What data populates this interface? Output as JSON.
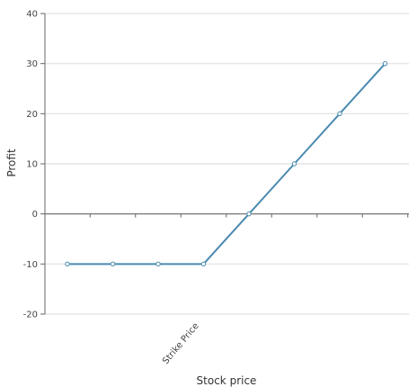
{
  "chart_data": {
    "type": "line",
    "title": "",
    "xlabel": "Stock price",
    "ylabel": "Profit",
    "ylim": [
      -20,
      40
    ],
    "y_ticks": [
      -20,
      -10,
      0,
      10,
      20,
      30,
      40
    ],
    "x_tick_count": 8,
    "x_annotation": {
      "label": "Strike Price",
      "at_index": 3
    },
    "grid": true,
    "series": [
      {
        "values": [
          -10,
          -10,
          -10,
          -10,
          0,
          10,
          20,
          30
        ],
        "color": "#4a8ab0"
      }
    ],
    "colors": {
      "line": "#4a8ab0",
      "grid": "#e6e6e6",
      "axis": "#666666",
      "point_fill": "#ffffff"
    }
  }
}
